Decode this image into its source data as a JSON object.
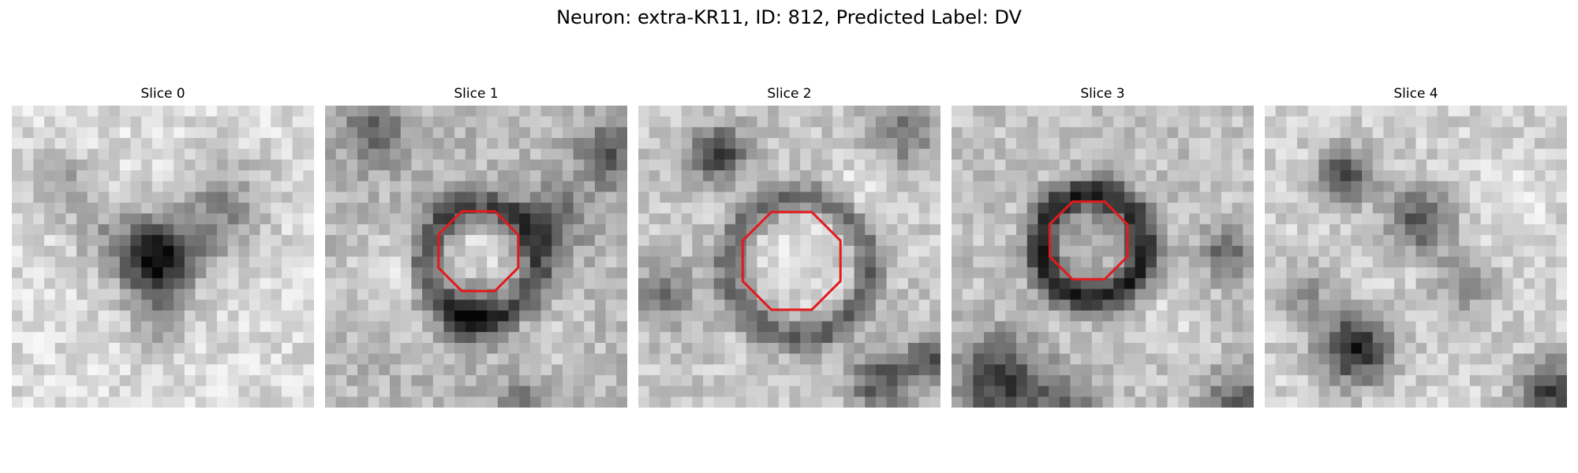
{
  "figure": {
    "title": "Neuron: extra-KR11, ID: 812, Predicted Label: DV"
  },
  "panels": [
    {
      "title": "Slice 0",
      "has_contour": false
    },
    {
      "title": "Slice 1",
      "has_contour": true
    },
    {
      "title": "Slice 2",
      "has_contour": true
    },
    {
      "title": "Slice 3",
      "has_contour": true
    },
    {
      "title": "Slice 4",
      "has_contour": false
    }
  ],
  "colors": {
    "contour": "#e31a1c",
    "background": "#ffffff"
  }
}
